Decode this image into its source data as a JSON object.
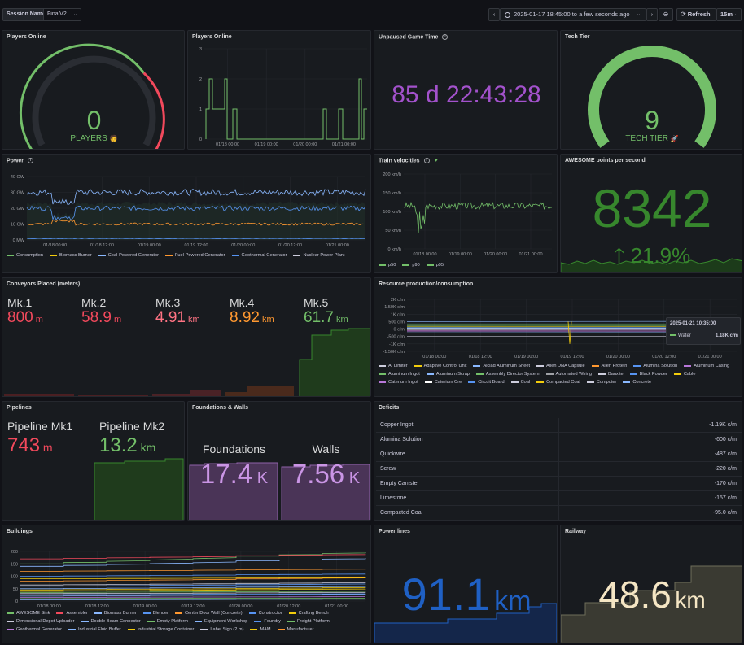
{
  "topbar": {
    "session_label": "Session Name",
    "session_value": "FinalV2",
    "time_range": "2025-01-17 18:45:00 to a few seconds ago",
    "refresh_label": "Refresh",
    "refresh_interval": "15m"
  },
  "players_gauge": {
    "title": "Players Online",
    "value": "0",
    "label": "PLAYERS",
    "color": "#73bf69"
  },
  "players_chart": {
    "title": "Players Online",
    "chart_data": {
      "type": "line",
      "x": [
        "01/18 00:00",
        "01/19 00:00",
        "01/20 00:00",
        "01/21 00:00"
      ],
      "ylim": [
        0,
        3
      ],
      "yticks": [
        "0",
        "1",
        "2",
        "3"
      ]
    }
  },
  "game_time": {
    "title": "Unpaused Game Time",
    "value": "85 d 22:43:28",
    "color": "#a352cc"
  },
  "tech_tier": {
    "title": "Tech Tier",
    "value": "9",
    "label": "TECH TIER",
    "color": "#73bf69"
  },
  "power": {
    "title": "Power",
    "chart_data": {
      "type": "line",
      "x": [
        "01/18 00:00",
        "01/18 12:00",
        "01/19 00:00",
        "01/19 12:00",
        "01/20 00:00",
        "01/20 12:00",
        "01/21 00:00"
      ],
      "yticks": [
        "0 MW",
        "10 GW",
        "20 GW",
        "30 GW",
        "40 GW"
      ],
      "ylim": [
        0,
        40
      ],
      "series": [
        {
          "name": "Consumption",
          "color": "#73bf69"
        },
        {
          "name": "Biomass Burner",
          "color": "#f2cc0c"
        },
        {
          "name": "Coal-Powered Generator",
          "color": "#8ab8ff"
        },
        {
          "name": "Fuel-Powered Generator",
          "color": "#ff9830"
        },
        {
          "name": "Geothermal Generator",
          "color": "#5794f2"
        },
        {
          "name": "Nuclear Power Plant",
          "color": "#ccccdc"
        }
      ]
    }
  },
  "train": {
    "title": "Train velocities",
    "chart_data": {
      "type": "line",
      "x": [
        "01/18 00:00",
        "01/19 00:00",
        "01/20 00:00",
        "01/21 00:00"
      ],
      "yticks": [
        "0 km/h",
        "50 km/h",
        "100 km/h",
        "150 km/h",
        "200 km/h"
      ],
      "ylim": [
        0,
        200
      ],
      "series": [
        {
          "name": "p50",
          "color": "#73bf69"
        },
        {
          "name": "p90",
          "color": "#73bf69"
        },
        {
          "name": "p95",
          "color": "#73bf69"
        }
      ]
    }
  },
  "awesome": {
    "title": "AWESOME points per second",
    "value": "8342",
    "change": "21.9%",
    "color": "#37872d"
  },
  "conveyors": {
    "title": "Conveyors Placed (meters)",
    "items": [
      {
        "label": "Mk.1",
        "value": "800",
        "unit": "m",
        "color": "#f2495c"
      },
      {
        "label": "Mk.2",
        "value": "58.9",
        "unit": "m",
        "color": "#f2495c"
      },
      {
        "label": "Mk.3",
        "value": "4.91",
        "unit": "km",
        "color": "#ff7383"
      },
      {
        "label": "Mk.4",
        "value": "8.92",
        "unit": "km",
        "color": "#ff9830"
      },
      {
        "label": "Mk.5",
        "value": "61.7",
        "unit": "km",
        "color": "#73bf69"
      }
    ]
  },
  "resources": {
    "title": "Resource production/consumption",
    "tooltip_time": "2025-01-21 10:35:00",
    "tooltip_series": "Water",
    "tooltip_value": "1.18K c/m",
    "chart_data": {
      "type": "line",
      "x": [
        "01/18 00:00",
        "01/18 12:00",
        "01/19 00:00",
        "01/19 12:00",
        "01/20 00:00",
        "01/20 12:00",
        "01/21 00:00"
      ],
      "yticks": [
        "-1.50K c/m",
        "-1K c/m",
        "-500 c/m",
        "0 c/m",
        "500 c/m",
        "1K c/m",
        "1.50K c/m",
        "2K c/m"
      ],
      "series": [
        {
          "name": "AI Limiter",
          "color": "#ccccdc"
        },
        {
          "name": "Adaptive Control Unit",
          "color": "#f2cc0c"
        },
        {
          "name": "Alclad Aluminum Sheet",
          "color": "#8ab8ff"
        },
        {
          "name": "Alien DNA Capsule",
          "color": "#ccccdc"
        },
        {
          "name": "Alien Protein",
          "color": "#ff9830"
        },
        {
          "name": "Alumina Solution",
          "color": "#5794f2"
        },
        {
          "name": "Aluminum Casing",
          "color": "#b877d9"
        },
        {
          "name": "Aluminum Ingot",
          "color": "#73bf69"
        },
        {
          "name": "Aluminum Scrap",
          "color": "#8ab8ff"
        },
        {
          "name": "Assembly Director System",
          "color": "#73bf69"
        },
        {
          "name": "Automated Wiring",
          "color": "#9fa1a6"
        },
        {
          "name": "Bauxite",
          "color": "#ccccdc"
        },
        {
          "name": "Black Powder",
          "color": "#5794f2"
        },
        {
          "name": "Cable",
          "color": "#f2cc0c"
        },
        {
          "name": "Caterium Ingot",
          "color": "#b877d9"
        },
        {
          "name": "Caterium Ore",
          "color": "#ffffff"
        },
        {
          "name": "Circuit Board",
          "color": "#5794f2"
        },
        {
          "name": "Coal",
          "color": "#ccccdc"
        },
        {
          "name": "Compacted Coal",
          "color": "#f2cc0c"
        },
        {
          "name": "Computer",
          "color": "#ccccdc"
        },
        {
          "name": "Concrete",
          "color": "#8ab8ff"
        }
      ]
    }
  },
  "pipelines": {
    "title": "Pipelines",
    "items": [
      {
        "label": "Pipeline Mk1",
        "value": "743",
        "unit": "m",
        "color": "#f2495c"
      },
      {
        "label": "Pipeline Mk2",
        "value": "13.2",
        "unit": "km",
        "color": "#73bf69"
      }
    ]
  },
  "foundations": {
    "title": "Foundations & Walls",
    "items": [
      {
        "label": "Foundations",
        "value": "17.4",
        "unit": "K",
        "color": "#ca95e5"
      },
      {
        "label": "Walls",
        "value": "7.56",
        "unit": "K",
        "color": "#ca95e5"
      }
    ]
  },
  "deficits": {
    "title": "Deficits",
    "rows": [
      {
        "name": "Copper Ingot",
        "value": "-1.19K c/m"
      },
      {
        "name": "Alumina Solution",
        "value": "-600 c/m"
      },
      {
        "name": "Quickwire",
        "value": "-487 c/m"
      },
      {
        "name": "Screw",
        "value": "-220 c/m"
      },
      {
        "name": "Empty Canister",
        "value": "-170 c/m"
      },
      {
        "name": "Limestone",
        "value": "-157 c/m"
      },
      {
        "name": "Compacted Coal",
        "value": "-95.0 c/m"
      }
    ]
  },
  "buildings": {
    "title": "Buildings",
    "chart_data": {
      "type": "line",
      "x": [
        "01/18 00:00",
        "01/18 12:00",
        "01/19 00:00",
        "01/19 12:00",
        "01/20 00:00",
        "01/20 12:00",
        "01/21 00:00"
      ],
      "yticks": [
        "0",
        "50",
        "100",
        "150",
        "200"
      ],
      "ylim": [
        0,
        200
      ],
      "series": [
        {
          "name": "AWESOME Sink",
          "color": "#73bf69"
        },
        {
          "name": "Assembler",
          "color": "#f2495c"
        },
        {
          "name": "Biomass Burner",
          "color": "#8ab8ff"
        },
        {
          "name": "Blender",
          "color": "#5794f2"
        },
        {
          "name": "Center Door Wall (Concrete)",
          "color": "#ff9830"
        },
        {
          "name": "Constructor",
          "color": "#5794f2"
        },
        {
          "name": "Crafting Bench",
          "color": "#f2cc0c"
        },
        {
          "name": "Dimensional Depot Uploader",
          "color": "#ccccdc"
        },
        {
          "name": "Double Beam Connector",
          "color": "#8ab8ff"
        },
        {
          "name": "Empty Platform",
          "color": "#73bf69"
        },
        {
          "name": "Equipment Workshop",
          "color": "#8ab8ff"
        },
        {
          "name": "Foundry",
          "color": "#5794f2"
        },
        {
          "name": "Freight Platform",
          "color": "#73bf69"
        },
        {
          "name": "Geothermal Generator",
          "color": "#b877d9"
        },
        {
          "name": "Industrial Fluid Buffer",
          "color": "#8ab8ff"
        },
        {
          "name": "Industrial Storage Container",
          "color": "#f2cc0c"
        },
        {
          "name": "Label Sign (2 m)",
          "color": "#ccccdc"
        },
        {
          "name": "MAM",
          "color": "#f2cc0c"
        },
        {
          "name": "Manufacturer",
          "color": "#ff9830"
        }
      ]
    }
  },
  "powerlines": {
    "title": "Power lines",
    "value": "91.1",
    "unit": "km",
    "color": "#1f60c4"
  },
  "railway": {
    "title": "Railway",
    "value": "48.6",
    "unit": "km",
    "color": "#f5e6c4"
  }
}
